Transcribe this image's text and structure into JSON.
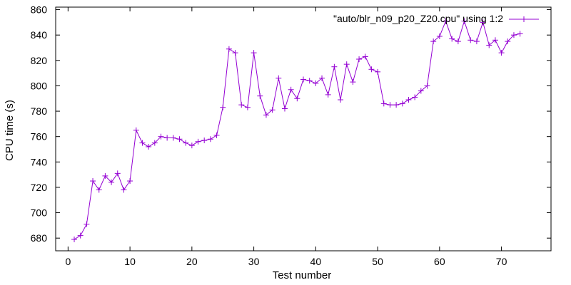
{
  "chart_data": {
    "type": "line",
    "title": "",
    "xlabel": "Test number",
    "ylabel": "CPU time (s)",
    "xlim": [
      -2,
      78
    ],
    "ylim": [
      670,
      862
    ],
    "x_ticks": [
      0,
      10,
      20,
      30,
      40,
      50,
      60,
      70
    ],
    "y_ticks": [
      680,
      700,
      720,
      740,
      760,
      780,
      800,
      820,
      840,
      860
    ],
    "grid": false,
    "legend_position": "top-right",
    "colors": {
      "series": "#9400d3",
      "axes": "#000000",
      "background": "#ffffff"
    },
    "series": [
      {
        "name": "\"auto/blr_n09_p20_Z20.cpu\" using 1:2",
        "marker": "plus",
        "x": [
          1,
          2,
          3,
          4,
          5,
          6,
          7,
          8,
          9,
          10,
          11,
          12,
          13,
          14,
          15,
          16,
          17,
          18,
          19,
          20,
          21,
          22,
          23,
          24,
          25,
          26,
          27,
          28,
          29,
          30,
          31,
          32,
          33,
          34,
          35,
          36,
          37,
          38,
          39,
          40,
          41,
          42,
          43,
          44,
          45,
          46,
          47,
          48,
          49,
          50,
          51,
          52,
          53,
          54,
          55,
          56,
          57,
          58,
          59,
          60,
          61,
          62,
          63,
          64,
          65,
          66,
          67,
          68,
          69,
          70,
          71,
          72,
          73
        ],
        "y": [
          679,
          682,
          691,
          725,
          718,
          729,
          724,
          731,
          718,
          725,
          765,
          755,
          752,
          755,
          760,
          759,
          759,
          758,
          755,
          753,
          756,
          757,
          758,
          761,
          783,
          829,
          826,
          785,
          783,
          826,
          792,
          777,
          781,
          806,
          782,
          797,
          790,
          805,
          804,
          802,
          806,
          793,
          815,
          789,
          817,
          803,
          821,
          823,
          813,
          811,
          786,
          785,
          785,
          786,
          789,
          791,
          796,
          800,
          835,
          839,
          851,
          837,
          835,
          851,
          836,
          835,
          850,
          832,
          836,
          826,
          835,
          840,
          841
        ]
      }
    ]
  }
}
